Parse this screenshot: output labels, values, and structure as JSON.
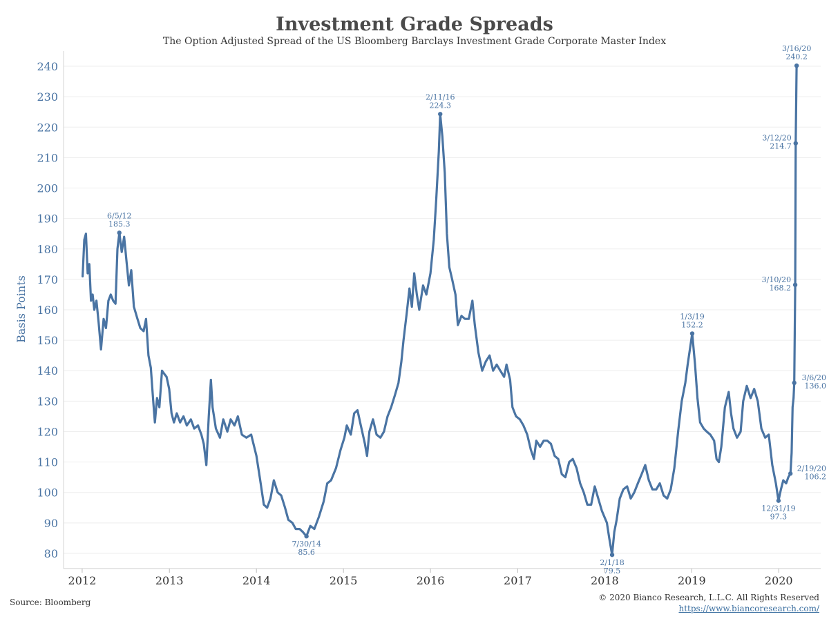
{
  "footer": {
    "source": "Source: Bloomberg",
    "copyright": "© 2020 Bianco Research, L.L.C. All Rights Reserved",
    "url": "https://www.biancoresearch.com/"
  },
  "colors": {
    "line": "#4a74a3",
    "title": "#4a4a4a",
    "axis_text": "#4a74a3",
    "grid": "#eeeeee"
  },
  "chart_data": {
    "type": "line",
    "title": "Investment Grade Spreads",
    "subtitle": "The Option Adjusted Spread of the US Bloomberg Barclays Investment Grade Corporate Master Index",
    "xlabel": "",
    "ylabel": "Basis Points",
    "ylim": [
      75,
      245
    ],
    "xlim": [
      "2011-10-15",
      "2020-06-25"
    ],
    "yticks": [
      80,
      90,
      100,
      110,
      120,
      130,
      140,
      150,
      160,
      170,
      180,
      190,
      200,
      210,
      220,
      230,
      240
    ],
    "xticks": [
      {
        "label": "2012",
        "date": "2012-01-01"
      },
      {
        "label": "2013",
        "date": "2013-01-01"
      },
      {
        "label": "2014",
        "date": "2014-01-01"
      },
      {
        "label": "2015",
        "date": "2015-01-01"
      },
      {
        "label": "2016",
        "date": "2016-01-01"
      },
      {
        "label": "2017",
        "date": "2017-01-01"
      },
      {
        "label": "2018",
        "date": "2018-01-01"
      },
      {
        "label": "2019",
        "date": "2019-01-01"
      },
      {
        "label": "2020",
        "date": "2020-01-01"
      }
    ],
    "grid": true,
    "legend": "none",
    "series": [
      {
        "points": [
          [
            "2012-01-03",
            171
          ],
          [
            "2012-01-10",
            183
          ],
          [
            "2012-01-17",
            185
          ],
          [
            "2012-01-24",
            172
          ],
          [
            "2012-01-31",
            175
          ],
          [
            "2012-02-07",
            163
          ],
          [
            "2012-02-14",
            165
          ],
          [
            "2012-02-21",
            160
          ],
          [
            "2012-03-01",
            163
          ],
          [
            "2012-03-10",
            156
          ],
          [
            "2012-03-20",
            147
          ],
          [
            "2012-03-31",
            157
          ],
          [
            "2012-04-10",
            154
          ],
          [
            "2012-04-20",
            163
          ],
          [
            "2012-04-30",
            165
          ],
          [
            "2012-05-10",
            163
          ],
          [
            "2012-05-20",
            162
          ],
          [
            "2012-05-28",
            180
          ],
          [
            "2012-06-05",
            185.3
          ],
          [
            "2012-06-15",
            179
          ],
          [
            "2012-06-25",
            184
          ],
          [
            "2012-07-05",
            176
          ],
          [
            "2012-07-15",
            168
          ],
          [
            "2012-07-25",
            173
          ],
          [
            "2012-08-05",
            161
          ],
          [
            "2012-08-20",
            157
          ],
          [
            "2012-09-01",
            154
          ],
          [
            "2012-09-15",
            153
          ],
          [
            "2012-09-25",
            157
          ],
          [
            "2012-10-05",
            145
          ],
          [
            "2012-10-15",
            141
          ],
          [
            "2012-10-25",
            130
          ],
          [
            "2012-11-01",
            123
          ],
          [
            "2012-11-10",
            131
          ],
          [
            "2012-11-20",
            128
          ],
          [
            "2012-12-01",
            140
          ],
          [
            "2012-12-10",
            139
          ],
          [
            "2012-12-20",
            138
          ],
          [
            "2012-12-31",
            134
          ],
          [
            "2013-01-10",
            126
          ],
          [
            "2013-01-20",
            123
          ],
          [
            "2013-02-01",
            126
          ],
          [
            "2013-02-15",
            123
          ],
          [
            "2013-03-01",
            125
          ],
          [
            "2013-03-15",
            122
          ],
          [
            "2013-04-01",
            124
          ],
          [
            "2013-04-15",
            121
          ],
          [
            "2013-05-01",
            122
          ],
          [
            "2013-05-15",
            119
          ],
          [
            "2013-05-25",
            116
          ],
          [
            "2013-06-05",
            109
          ],
          [
            "2013-06-15",
            125
          ],
          [
            "2013-06-24",
            137
          ],
          [
            "2013-07-01",
            128
          ],
          [
            "2013-07-15",
            121
          ],
          [
            "2013-08-01",
            118
          ],
          [
            "2013-08-15",
            124
          ],
          [
            "2013-09-01",
            120
          ],
          [
            "2013-09-15",
            124
          ],
          [
            "2013-10-01",
            122
          ],
          [
            "2013-10-15",
            125
          ],
          [
            "2013-11-01",
            119
          ],
          [
            "2013-11-20",
            118
          ],
          [
            "2013-12-10",
            119
          ],
          [
            "2014-01-01",
            112
          ],
          [
            "2014-01-15",
            105
          ],
          [
            "2014-02-01",
            96
          ],
          [
            "2014-02-15",
            95
          ],
          [
            "2014-03-01",
            98
          ],
          [
            "2014-03-15",
            104
          ],
          [
            "2014-03-31",
            100
          ],
          [
            "2014-04-15",
            99
          ],
          [
            "2014-05-01",
            95
          ],
          [
            "2014-05-15",
            91
          ],
          [
            "2014-06-01",
            90
          ],
          [
            "2014-06-15",
            88
          ],
          [
            "2014-07-01",
            88
          ],
          [
            "2014-07-15",
            87
          ],
          [
            "2014-07-30",
            85.6
          ],
          [
            "2014-08-15",
            89
          ],
          [
            "2014-09-01",
            88
          ],
          [
            "2014-09-20",
            92
          ],
          [
            "2014-10-10",
            97
          ],
          [
            "2014-10-25",
            103
          ],
          [
            "2014-11-10",
            104
          ],
          [
            "2014-12-01",
            108
          ],
          [
            "2014-12-20",
            114
          ],
          [
            "2015-01-05",
            118
          ],
          [
            "2015-01-15",
            122
          ],
          [
            "2015-02-01",
            119
          ],
          [
            "2015-02-15",
            126
          ],
          [
            "2015-03-01",
            127
          ],
          [
            "2015-03-15",
            122
          ],
          [
            "2015-04-01",
            116
          ],
          [
            "2015-04-10",
            112
          ],
          [
            "2015-04-20",
            120
          ],
          [
            "2015-05-05",
            124
          ],
          [
            "2015-05-20",
            119
          ],
          [
            "2015-06-05",
            118
          ],
          [
            "2015-06-20",
            120
          ],
          [
            "2015-07-05",
            125
          ],
          [
            "2015-07-20",
            128
          ],
          [
            "2015-08-05",
            132
          ],
          [
            "2015-08-20",
            136
          ],
          [
            "2015-09-01",
            143
          ],
          [
            "2015-09-10",
            150
          ],
          [
            "2015-09-25",
            160
          ],
          [
            "2015-10-05",
            167
          ],
          [
            "2015-10-15",
            161
          ],
          [
            "2015-10-25",
            172
          ],
          [
            "2015-11-05",
            165
          ],
          [
            "2015-11-15",
            160
          ],
          [
            "2015-12-01",
            168
          ],
          [
            "2015-12-15",
            165
          ],
          [
            "2016-01-01",
            172
          ],
          [
            "2016-01-15",
            183
          ],
          [
            "2016-01-25",
            196
          ],
          [
            "2016-02-05",
            212
          ],
          [
            "2016-02-11",
            224.3
          ],
          [
            "2016-02-20",
            217
          ],
          [
            "2016-03-01",
            205
          ],
          [
            "2016-03-10",
            185
          ],
          [
            "2016-03-20",
            174
          ],
          [
            "2016-04-01",
            170
          ],
          [
            "2016-04-15",
            165
          ],
          [
            "2016-04-25",
            155
          ],
          [
            "2016-05-10",
            158
          ],
          [
            "2016-05-25",
            157
          ],
          [
            "2016-06-10",
            157
          ],
          [
            "2016-06-25",
            163
          ],
          [
            "2016-07-05",
            155
          ],
          [
            "2016-07-20",
            146
          ],
          [
            "2016-08-05",
            140
          ],
          [
            "2016-08-20",
            143
          ],
          [
            "2016-09-05",
            145
          ],
          [
            "2016-09-20",
            140
          ],
          [
            "2016-10-05",
            142
          ],
          [
            "2016-10-20",
            140
          ],
          [
            "2016-11-05",
            138
          ],
          [
            "2016-11-15",
            142
          ],
          [
            "2016-11-30",
            137
          ],
          [
            "2016-12-10",
            128
          ],
          [
            "2016-12-25",
            125
          ],
          [
            "2017-01-10",
            124
          ],
          [
            "2017-01-25",
            122
          ],
          [
            "2017-02-10",
            119
          ],
          [
            "2017-02-25",
            114
          ],
          [
            "2017-03-10",
            111
          ],
          [
            "2017-03-20",
            117
          ],
          [
            "2017-04-05",
            115
          ],
          [
            "2017-04-20",
            117
          ],
          [
            "2017-05-05",
            117
          ],
          [
            "2017-05-20",
            116
          ],
          [
            "2017-06-05",
            112
          ],
          [
            "2017-06-20",
            111
          ],
          [
            "2017-07-05",
            106
          ],
          [
            "2017-07-20",
            105
          ],
          [
            "2017-08-05",
            110
          ],
          [
            "2017-08-20",
            111
          ],
          [
            "2017-09-05",
            108
          ],
          [
            "2017-09-20",
            103
          ],
          [
            "2017-10-05",
            100
          ],
          [
            "2017-10-20",
            96
          ],
          [
            "2017-11-05",
            96
          ],
          [
            "2017-11-20",
            102
          ],
          [
            "2017-12-05",
            98
          ],
          [
            "2017-12-20",
            94
          ],
          [
            "2018-01-10",
            90
          ],
          [
            "2018-01-20",
            85
          ],
          [
            "2018-02-01",
            79.5
          ],
          [
            "2018-02-10",
            87
          ],
          [
            "2018-02-20",
            91
          ],
          [
            "2018-03-05",
            98
          ],
          [
            "2018-03-20",
            101
          ],
          [
            "2018-04-05",
            102
          ],
          [
            "2018-04-20",
            98
          ],
          [
            "2018-05-05",
            100
          ],
          [
            "2018-05-20",
            103
          ],
          [
            "2018-06-05",
            106
          ],
          [
            "2018-06-20",
            109
          ],
          [
            "2018-07-05",
            104
          ],
          [
            "2018-07-20",
            101
          ],
          [
            "2018-08-05",
            101
          ],
          [
            "2018-08-20",
            103
          ],
          [
            "2018-09-05",
            99
          ],
          [
            "2018-09-20",
            98
          ],
          [
            "2018-10-05",
            101
          ],
          [
            "2018-10-20",
            108
          ],
          [
            "2018-11-05",
            120
          ],
          [
            "2018-11-20",
            130
          ],
          [
            "2018-12-05",
            136
          ],
          [
            "2018-12-15",
            142
          ],
          [
            "2019-01-03",
            152.2
          ],
          [
            "2019-01-15",
            142
          ],
          [
            "2019-01-25",
            131
          ],
          [
            "2019-02-05",
            123
          ],
          [
            "2019-02-20",
            121
          ],
          [
            "2019-03-05",
            120
          ],
          [
            "2019-03-20",
            119
          ],
          [
            "2019-04-05",
            117
          ],
          [
            "2019-04-15",
            111
          ],
          [
            "2019-04-25",
            110
          ],
          [
            "2019-05-05",
            115
          ],
          [
            "2019-05-20",
            128
          ],
          [
            "2019-06-05",
            133
          ],
          [
            "2019-06-15",
            126
          ],
          [
            "2019-06-25",
            121
          ],
          [
            "2019-07-10",
            118
          ],
          [
            "2019-07-25",
            120
          ],
          [
            "2019-08-05",
            130
          ],
          [
            "2019-08-20",
            135
          ],
          [
            "2019-09-05",
            131
          ],
          [
            "2019-09-20",
            134
          ],
          [
            "2019-10-05",
            130
          ],
          [
            "2019-10-20",
            121
          ],
          [
            "2019-11-05",
            118
          ],
          [
            "2019-11-20",
            119
          ],
          [
            "2019-12-05",
            109
          ],
          [
            "2019-12-20",
            103
          ],
          [
            "2019-12-31",
            97.3
          ],
          [
            "2020-01-10",
            101
          ],
          [
            "2020-01-20",
            104
          ],
          [
            "2020-02-01",
            103
          ],
          [
            "2020-02-10",
            105
          ],
          [
            "2020-02-19",
            106.2
          ],
          [
            "2020-02-24",
            113
          ],
          [
            "2020-02-28",
            128
          ],
          [
            "2020-03-03",
            131
          ],
          [
            "2020-03-06",
            136.0
          ],
          [
            "2020-03-10",
            168.2
          ],
          [
            "2020-03-12",
            214.7
          ],
          [
            "2020-03-16",
            240.2
          ]
        ]
      }
    ],
    "annotations": [
      {
        "date": "2012-06-05",
        "value": 185.3,
        "label": "6/5/12",
        "value_label": "185.3",
        "pos": "above"
      },
      {
        "date": "2014-07-30",
        "value": 85.6,
        "label": "7/30/14",
        "value_label": "85.6",
        "pos": "below"
      },
      {
        "date": "2016-02-11",
        "value": 224.3,
        "label": "2/11/16",
        "value_label": "224.3",
        "pos": "above"
      },
      {
        "date": "2018-02-01",
        "value": 79.5,
        "label": "2/1/18",
        "value_label": "79.5",
        "pos": "below"
      },
      {
        "date": "2019-01-03",
        "value": 152.2,
        "label": "1/3/19",
        "value_label": "152.2",
        "pos": "above"
      },
      {
        "date": "2019-12-31",
        "value": 97.3,
        "label": "12/31/19",
        "value_label": "97.3",
        "pos": "below"
      },
      {
        "date": "2020-02-19",
        "value": 106.2,
        "label": "2/19/20",
        "value_label": "106.2",
        "pos": "right"
      },
      {
        "date": "2020-03-06",
        "value": 136.0,
        "label": "3/6/20",
        "value_label": "136.0",
        "pos": "right"
      },
      {
        "date": "2020-03-10",
        "value": 168.2,
        "label": "3/10/20",
        "value_label": "168.2",
        "pos": "left"
      },
      {
        "date": "2020-03-12",
        "value": 214.7,
        "label": "3/12/20",
        "value_label": "214.7",
        "pos": "left"
      },
      {
        "date": "2020-03-16",
        "value": 240.2,
        "label": "3/16/20",
        "value_label": "240.2",
        "pos": "above"
      }
    ]
  }
}
